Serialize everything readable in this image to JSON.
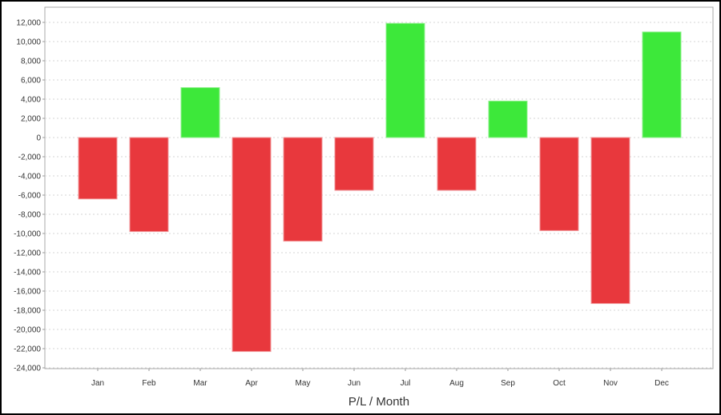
{
  "chart_data": {
    "type": "bar",
    "title": "",
    "xlabel": "P/L / Month",
    "ylabel": "",
    "categories": [
      "Jan",
      "Feb",
      "Mar",
      "Apr",
      "May",
      "Jun",
      "Jul",
      "Aug",
      "Sep",
      "Oct",
      "Nov",
      "Dec"
    ],
    "values": [
      -6400,
      -9800,
      5200,
      -22300,
      -10800,
      -5500,
      11900,
      -5500,
      3800,
      -9700,
      -17300,
      11000
    ],
    "ylim": [
      -24000,
      12000
    ],
    "yticks": [
      12000,
      10000,
      8000,
      6000,
      4000,
      2000,
      0,
      -2000,
      -4000,
      -6000,
      -8000,
      -10000,
      -12000,
      -14000,
      -16000,
      -18000,
      -20000,
      -22000,
      -24000
    ],
    "ytick_labels": [
      "12,000",
      "10,000",
      "8,000",
      "6,000",
      "4,000",
      "2,000",
      "0",
      "-2,000",
      "-4,000",
      "-6,000",
      "-8,000",
      "-10,000",
      "-12,000",
      "-14,000",
      "-16,000",
      "-18,000",
      "-20,000",
      "-22,000",
      "-24,000"
    ],
    "grid": true,
    "legend": "none",
    "colors": {
      "positive": "#3de83a",
      "negative": "#e8383d"
    }
  }
}
